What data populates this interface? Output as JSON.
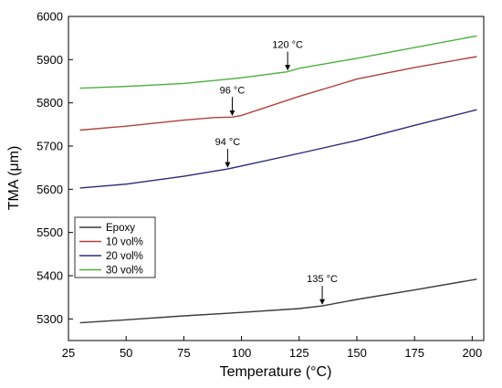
{
  "chart_data": {
    "type": "line",
    "xlabel": "Temperature (°C)",
    "ylabel": "TMA (μm)",
    "xlim": [
      25,
      205
    ],
    "ylim": [
      5250,
      6000
    ],
    "xticks": [
      25,
      50,
      75,
      100,
      125,
      150,
      175,
      200
    ],
    "yticks": [
      5300,
      5400,
      5500,
      5600,
      5700,
      5800,
      5900,
      6000
    ],
    "grid": false,
    "legend_position": "lower-left",
    "series": [
      {
        "name": "Epoxy",
        "color": "#3a3a3a",
        "x": [
          30,
          50,
          75,
          100,
          125,
          135,
          150,
          175,
          202
        ],
        "y": [
          5291,
          5298,
          5307,
          5315,
          5324,
          5330,
          5345,
          5367,
          5392
        ]
      },
      {
        "name": "10 vol%",
        "color": "#b0413e",
        "x": [
          30,
          50,
          75,
          88,
          96,
          100,
          125,
          150,
          175,
          202
        ],
        "y": [
          5737,
          5746,
          5760,
          5766,
          5767,
          5771,
          5815,
          5855,
          5882,
          5907
        ]
      },
      {
        "name": "20 vol%",
        "color": "#2a2a7a",
        "x": [
          30,
          50,
          75,
          94,
          100,
          125,
          150,
          175,
          202
        ],
        "y": [
          5603,
          5612,
          5630,
          5647,
          5654,
          5683,
          5713,
          5748,
          5784
        ]
      },
      {
        "name": "30 vol%",
        "color": "#4caf3f",
        "x": [
          30,
          50,
          75,
          100,
          120,
          125,
          150,
          175,
          202
        ],
        "y": [
          5834,
          5838,
          5845,
          5858,
          5872,
          5880,
          5903,
          5928,
          5955
        ]
      }
    ],
    "annotations": [
      {
        "text": "135 °C",
        "x": 135,
        "y": 5330
      },
      {
        "text": "94 °C",
        "x": 94,
        "y": 5647
      },
      {
        "text": "96 °C",
        "x": 96,
        "y": 5767
      },
      {
        "text": "120 °C",
        "x": 120,
        "y": 5872
      }
    ]
  }
}
